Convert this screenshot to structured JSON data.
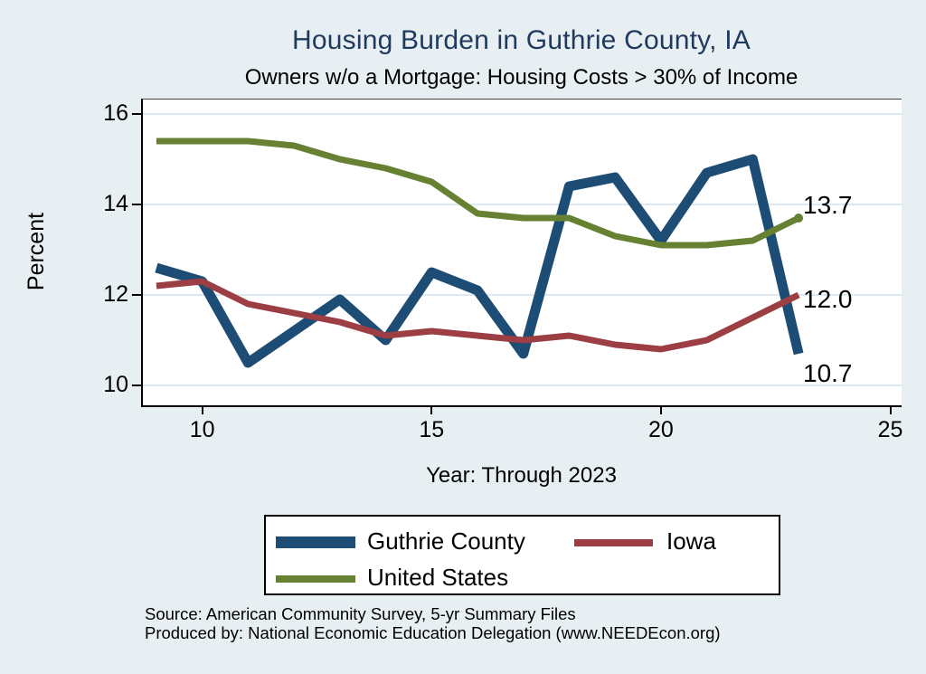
{
  "title": "Housing Burden in Guthrie County, IA",
  "subtitle": "Owners w/o a Mortgage: Housing Costs > 30% of Income",
  "y_axis_label": "Percent",
  "x_axis_label": "Year: Through 2023",
  "source_line1": "Source: American Community Survey, 5-yr Summary Files",
  "source_line2": "Produced by: National Economic Education Delegation (www.NEEDEcon.org)",
  "colors": {
    "background": "#e8eff2",
    "plot_background": "#ffffff",
    "grid": "#dde9f1",
    "axis": "#000000",
    "title": "#1f3a5e",
    "guthrie": "#1d4d74",
    "iowa": "#9c3e44",
    "us": "#678132"
  },
  "chart_data": {
    "type": "line",
    "x": [
      9,
      10,
      11,
      12,
      13,
      14,
      15,
      16,
      17,
      18,
      19,
      20,
      21,
      22,
      23
    ],
    "x_ticks": [
      10,
      15,
      20,
      25
    ],
    "y_ticks": [
      16,
      14,
      12,
      10
    ],
    "xlim": [
      8.7,
      25.2
    ],
    "ylim": [
      9.6,
      16.3
    ],
    "grid": true,
    "legend_position": "below",
    "title": "Housing Burden in Guthrie County, IA",
    "subtitle": "Owners w/o a Mortgage: Housing Costs > 30% of Income",
    "xlabel": "Year: Through 2023",
    "ylabel": "Percent",
    "series": [
      {
        "name": "Guthrie County",
        "color_key": "guthrie",
        "width": 11,
        "values": [
          12.6,
          12.3,
          10.5,
          11.2,
          11.9,
          11.0,
          12.5,
          12.1,
          10.7,
          14.4,
          14.6,
          13.2,
          14.7,
          15.0,
          10.7
        ]
      },
      {
        "name": "Iowa",
        "color_key": "iowa",
        "width": 7,
        "values": [
          12.2,
          12.3,
          11.8,
          11.6,
          11.4,
          11.1,
          11.2,
          11.1,
          11.0,
          11.1,
          10.9,
          10.8,
          11.0,
          11.5,
          12.0
        ]
      },
      {
        "name": "United States",
        "color_key": "us",
        "width": 7,
        "end_dot": true,
        "values": [
          15.4,
          15.4,
          15.4,
          15.3,
          15.0,
          14.8,
          14.5,
          13.8,
          13.7,
          13.7,
          13.3,
          13.1,
          13.1,
          13.2,
          13.7
        ]
      }
    ],
    "end_labels": [
      {
        "text": "13.7",
        "value": 13.7
      },
      {
        "text": "12.0",
        "value": 12.0
      },
      {
        "text": "10.7",
        "value": 10.7
      }
    ]
  },
  "legend": {
    "items": [
      {
        "label": "Guthrie County"
      },
      {
        "label": "Iowa"
      },
      {
        "label": "United States"
      }
    ]
  }
}
